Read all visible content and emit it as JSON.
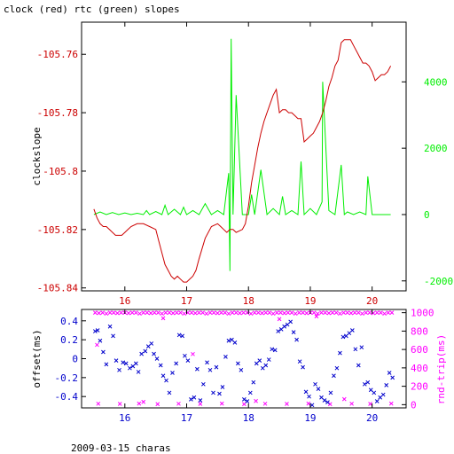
{
  "title": "clock (red) rtc (green) slopes",
  "footer": "2009-03-15 charas",
  "colors": {
    "clock": "#cc0000",
    "rtc": "#00ee00",
    "offset": "#0000cc",
    "rtt": "#ff00ff",
    "axis": "#000000"
  },
  "chart_data": [
    {
      "type": "line",
      "title": "clock (red) rtc (green) slopes",
      "xlabel": "",
      "ylabel": "clockslope",
      "y2label": "",
      "xlim": [
        15.3,
        20.55
      ],
      "ylim": [
        -105.841,
        -105.749
      ],
      "y2lim": [
        -2300,
        5800
      ],
      "x_ticks": [
        "16",
        "17",
        "18",
        "19",
        "20"
      ],
      "y_ticks": [
        "-105.76",
        "-105.78",
        "-105.8",
        "-105.82",
        "-105.84"
      ],
      "y2_ticks": [
        "4000",
        "2000",
        "0",
        "-2000"
      ],
      "grid": false,
      "series": [
        {
          "name": "clock",
          "axis": "left",
          "x": [
            15.5,
            15.55,
            15.6,
            15.65,
            15.7,
            15.75,
            15.8,
            15.85,
            15.9,
            15.95,
            16.0,
            16.05,
            16.1,
            16.2,
            16.3,
            16.4,
            16.5,
            16.55,
            16.6,
            16.65,
            16.7,
            16.75,
            16.8,
            16.85,
            16.9,
            16.95,
            17.0,
            17.05,
            17.1,
            17.15,
            17.2,
            17.3,
            17.4,
            17.5,
            17.55,
            17.6,
            17.65,
            17.7,
            17.75,
            17.8,
            17.9,
            17.95,
            18.0,
            18.05,
            18.1,
            18.15,
            18.2,
            18.25,
            18.3,
            18.35,
            18.4,
            18.45,
            18.5,
            18.55,
            18.6,
            18.65,
            18.7,
            18.75,
            18.8,
            18.85,
            18.9,
            18.95,
            19.0,
            19.05,
            19.1,
            19.15,
            19.2,
            19.25,
            19.3,
            19.35,
            19.4,
            19.45,
            19.5,
            19.55,
            19.6,
            19.65,
            19.7,
            19.75,
            19.8,
            19.85,
            19.9,
            19.95,
            20.0,
            20.05,
            20.1,
            20.15,
            20.2,
            20.25,
            20.3
          ],
          "values": [
            -105.813,
            -105.816,
            -105.818,
            -105.819,
            -105.819,
            -105.82,
            -105.821,
            -105.822,
            -105.822,
            -105.822,
            -105.821,
            -105.82,
            -105.819,
            -105.818,
            -105.818,
            -105.819,
            -105.82,
            -105.824,
            -105.828,
            -105.832,
            -105.834,
            -105.836,
            -105.837,
            -105.836,
            -105.837,
            -105.838,
            -105.838,
            -105.837,
            -105.836,
            -105.834,
            -105.83,
            -105.823,
            -105.819,
            -105.818,
            -105.819,
            -105.82,
            -105.821,
            -105.82,
            -105.82,
            -105.821,
            -105.82,
            -105.818,
            -105.812,
            -105.804,
            -105.798,
            -105.792,
            -105.787,
            -105.783,
            -105.78,
            -105.777,
            -105.774,
            -105.772,
            -105.78,
            -105.779,
            -105.779,
            -105.78,
            -105.78,
            -105.781,
            -105.782,
            -105.782,
            -105.79,
            -105.789,
            -105.788,
            -105.787,
            -105.785,
            -105.783,
            -105.78,
            -105.776,
            -105.771,
            -105.768,
            -105.764,
            -105.762,
            -105.756,
            -105.755,
            -105.755,
            -105.755,
            -105.757,
            -105.759,
            -105.761,
            -105.763,
            -105.763,
            -105.764,
            -105.766,
            -105.769,
            -105.768,
            -105.767,
            -105.767,
            -105.766,
            -105.764
          ]
        },
        {
          "name": "rtc",
          "axis": "right",
          "x": [
            15.5,
            15.6,
            15.7,
            15.8,
            15.9,
            16.0,
            16.1,
            16.2,
            16.3,
            16.35,
            16.4,
            16.5,
            16.6,
            16.65,
            16.7,
            16.8,
            16.9,
            16.95,
            17.0,
            17.1,
            17.2,
            17.3,
            17.4,
            17.5,
            17.6,
            17.68,
            17.7,
            17.72,
            17.75,
            17.8,
            17.9,
            18.0,
            18.05,
            18.1,
            18.2,
            18.3,
            18.4,
            18.5,
            18.55,
            18.6,
            18.7,
            18.8,
            18.85,
            18.9,
            19.0,
            19.1,
            19.19,
            19.2,
            19.3,
            19.4,
            19.5,
            19.55,
            19.6,
            19.7,
            19.8,
            19.9,
            19.93,
            20.0,
            20.1,
            20.2,
            20.3
          ],
          "values": [
            0,
            80,
            0,
            60,
            0,
            50,
            0,
            40,
            0,
            120,
            0,
            90,
            0,
            280,
            0,
            160,
            0,
            220,
            0,
            120,
            0,
            330,
            0,
            120,
            0,
            1250,
            -1700,
            5300,
            0,
            3600,
            0,
            0,
            600,
            0,
            1350,
            0,
            180,
            0,
            550,
            0,
            120,
            0,
            1600,
            0,
            180,
            0,
            380,
            4000,
            120,
            0,
            1500,
            0,
            80,
            0,
            80,
            0,
            1150,
            0,
            0,
            0,
            0
          ]
        }
      ]
    },
    {
      "type": "scatter",
      "title": "",
      "xlabel": "",
      "ylabel": "offset(ms)",
      "y2label": "rnd-trip(ms)",
      "xlim": [
        15.3,
        20.55
      ],
      "ylim": [
        -0.52,
        0.52
      ],
      "y2lim": [
        -35,
        1035
      ],
      "x_ticks": [
        "16",
        "17",
        "18",
        "19",
        "20"
      ],
      "y_ticks": [
        "0.4",
        "0.2",
        "0",
        "-0.2",
        "-0.4"
      ],
      "y2_ticks": [
        "1000",
        "800",
        "600",
        "400",
        "200",
        "0"
      ],
      "grid": false,
      "series": [
        {
          "name": "offset",
          "axis": "left",
          "x": [
            15.52,
            15.56,
            15.6,
            15.65,
            15.7,
            15.76,
            15.81,
            15.86,
            15.91,
            15.97,
            16.02,
            16.08,
            16.13,
            16.18,
            16.22,
            16.27,
            16.33,
            16.38,
            16.43,
            16.47,
            16.52,
            16.58,
            16.62,
            16.67,
            16.72,
            16.77,
            16.83,
            16.88,
            16.93,
            16.97,
            17.02,
            17.07,
            17.12,
            17.17,
            17.22,
            17.27,
            17.33,
            17.38,
            17.43,
            17.48,
            17.53,
            17.58,
            17.63,
            17.68,
            17.73,
            17.78,
            17.83,
            17.88,
            17.93,
            17.98,
            18.03,
            18.08,
            18.13,
            18.18,
            18.23,
            18.28,
            18.33,
            18.38,
            18.43,
            18.48,
            18.53,
            18.58,
            18.63,
            18.68,
            18.73,
            18.78,
            18.83,
            18.88,
            18.93,
            18.98,
            19.03,
            19.08,
            19.13,
            19.18,
            19.23,
            19.28,
            19.33,
            19.38,
            19.43,
            19.48,
            19.53,
            19.58,
            19.63,
            19.68,
            19.73,
            19.78,
            19.83,
            19.88,
            19.93,
            19.98,
            20.03,
            20.08,
            20.13,
            20.18,
            20.23,
            20.28,
            20.33
          ],
          "values": [
            0.29,
            0.3,
            0.19,
            0.07,
            -0.06,
            0.34,
            0.24,
            -0.02,
            -0.12,
            -0.04,
            -0.05,
            -0.1,
            -0.08,
            -0.05,
            -0.14,
            0.05,
            0.08,
            0.13,
            0.16,
            0.05,
            0.0,
            -0.07,
            -0.18,
            -0.23,
            -0.36,
            -0.15,
            -0.05,
            0.25,
            0.24,
            0.03,
            -0.02,
            -0.43,
            -0.41,
            -0.11,
            -0.44,
            -0.27,
            -0.04,
            -0.12,
            -0.36,
            -0.09,
            -0.37,
            -0.3,
            0.02,
            0.19,
            0.2,
            0.17,
            -0.05,
            -0.12,
            -0.43,
            -0.45,
            -0.36,
            -0.25,
            -0.05,
            -0.02,
            -0.1,
            -0.07,
            -0.01,
            0.1,
            0.09,
            0.29,
            0.31,
            0.34,
            0.36,
            0.39,
            0.28,
            0.2,
            -0.03,
            -0.09,
            -0.35,
            -0.4,
            -0.49,
            -0.27,
            -0.32,
            -0.41,
            -0.44,
            -0.46,
            -0.36,
            -0.18,
            -0.1,
            0.06,
            0.23,
            0.24,
            0.27,
            0.3,
            0.1,
            -0.07,
            0.12,
            -0.27,
            -0.25,
            -0.33,
            -0.36,
            -0.45,
            -0.41,
            -0.38,
            -0.28,
            -0.15,
            -0.2
          ]
        },
        {
          "name": "rnd-trip",
          "axis": "right",
          "x": [
            15.52,
            15.58,
            15.64,
            15.7,
            15.76,
            15.82,
            15.88,
            15.94,
            16.0,
            16.06,
            16.12,
            16.18,
            16.24,
            16.3,
            16.36,
            16.42,
            16.48,
            16.54,
            16.6,
            16.66,
            16.72,
            16.78,
            16.84,
            16.9,
            16.96,
            17.02,
            17.08,
            17.14,
            17.2,
            17.26,
            17.32,
            17.38,
            17.44,
            17.5,
            17.56,
            17.62,
            17.68,
            17.74,
            17.8,
            17.86,
            17.92,
            17.98,
            18.04,
            18.1,
            18.16,
            18.22,
            18.28,
            18.34,
            18.4,
            18.46,
            18.52,
            18.58,
            18.64,
            18.7,
            18.76,
            18.82,
            18.88,
            18.94,
            19.0,
            19.06,
            19.12,
            19.18,
            19.24,
            19.3,
            19.36,
            19.42,
            19.48,
            19.54,
            19.6,
            19.66,
            19.72,
            19.78,
            19.84,
            19.9,
            19.96,
            20.02,
            20.08,
            20.14,
            20.2,
            20.26,
            20.32,
            15.57,
            15.92,
            16.23,
            16.53,
            16.87,
            17.22,
            17.57,
            17.93,
            18.27,
            18.62,
            18.97,
            19.32,
            19.67,
            19.97,
            20.31,
            15.55,
            16.3,
            16.62,
            17.1,
            18.12,
            18.5,
            19.1,
            19.55
          ],
          "values": [
            1000,
            995,
            1000,
            990,
            1000,
            1000,
            995,
            1000,
            1000,
            995,
            1000,
            1000,
            990,
            1000,
            1000,
            995,
            1000,
            1000,
            990,
            1000,
            1000,
            995,
            1000,
            1000,
            990,
            1000,
            1000,
            995,
            1000,
            1000,
            990,
            1000,
            1000,
            995,
            1000,
            1000,
            990,
            1000,
            1000,
            995,
            1000,
            1000,
            990,
            1000,
            1000,
            995,
            1000,
            1000,
            990,
            1000,
            1000,
            995,
            1000,
            1000,
            990,
            1000,
            1000,
            995,
            1000,
            1000,
            990,
            1000,
            1000,
            995,
            1000,
            1000,
            990,
            1000,
            1000,
            995,
            1000,
            1000,
            990,
            1000,
            1000,
            995,
            1000,
            1000,
            990,
            1000,
            1000,
            10,
            8,
            12,
            6,
            10,
            8,
            12,
            6,
            10,
            8,
            12,
            6,
            10,
            8,
            12,
            650,
            30,
            940,
            550,
            40,
            930,
            960,
            60
          ]
        }
      ]
    }
  ]
}
